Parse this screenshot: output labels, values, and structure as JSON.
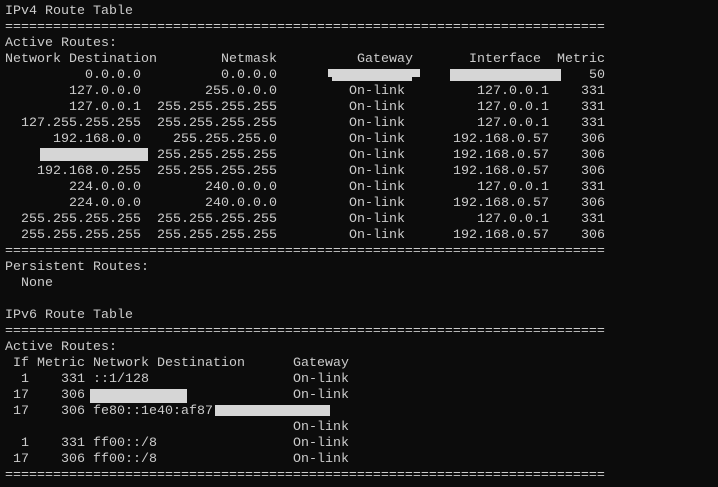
{
  "ipv4": {
    "title": "IPv4 Route Table",
    "separator": "===========================================================================",
    "active_label": "Active Routes:",
    "headers": {
      "destination": "Network Destination",
      "netmask": "Netmask",
      "gateway": "Gateway",
      "interface": "Interface",
      "metric": "Metric"
    },
    "rows": [
      {
        "destination": "0.0.0.0",
        "netmask": "0.0.0.0",
        "gateway": "",
        "interface": "",
        "metric": "50"
      },
      {
        "destination": "127.0.0.0",
        "netmask": "255.0.0.0",
        "gateway": "On-link",
        "interface": "127.0.0.1",
        "metric": "331"
      },
      {
        "destination": "127.0.0.1",
        "netmask": "255.255.255.255",
        "gateway": "On-link",
        "interface": "127.0.0.1",
        "metric": "331"
      },
      {
        "destination": "127.255.255.255",
        "netmask": "255.255.255.255",
        "gateway": "On-link",
        "interface": "127.0.0.1",
        "metric": "331"
      },
      {
        "destination": "192.168.0.0",
        "netmask": "255.255.255.0",
        "gateway": "On-link",
        "interface": "192.168.0.57",
        "metric": "306"
      },
      {
        "destination": "",
        "netmask": "255.255.255.255",
        "gateway": "On-link",
        "interface": "192.168.0.57",
        "metric": "306"
      },
      {
        "destination": "192.168.0.255",
        "netmask": "255.255.255.255",
        "gateway": "On-link",
        "interface": "192.168.0.57",
        "metric": "306"
      },
      {
        "destination": "224.0.0.0",
        "netmask": "240.0.0.0",
        "gateway": "On-link",
        "interface": "127.0.0.1",
        "metric": "331"
      },
      {
        "destination": "224.0.0.0",
        "netmask": "240.0.0.0",
        "gateway": "On-link",
        "interface": "192.168.0.57",
        "metric": "306"
      },
      {
        "destination": "255.255.255.255",
        "netmask": "255.255.255.255",
        "gateway": "On-link",
        "interface": "127.0.0.1",
        "metric": "331"
      },
      {
        "destination": "255.255.255.255",
        "netmask": "255.255.255.255",
        "gateway": "On-link",
        "interface": "192.168.0.57",
        "metric": "306"
      }
    ],
    "persistent_label": "Persistent Routes:",
    "persistent_value": "  None"
  },
  "ipv6": {
    "title": "IPv6 Route Table",
    "active_label": "Active Routes:",
    "headers": {
      "if": "If",
      "metric": "Metric",
      "destination": "Network Destination",
      "gateway": "Gateway"
    },
    "rows": [
      {
        "if": "1",
        "metric": "331",
        "destination": "::1/128",
        "gateway": "On-link"
      },
      {
        "if": "17",
        "metric": "306",
        "destination": "",
        "gateway": "On-link"
      },
      {
        "if": "17",
        "metric": "306",
        "destination": "fe80::1e40:af87",
        "gateway": "",
        "wrapped_gateway": "On-link"
      },
      {
        "if": "1",
        "metric": "331",
        "destination": "ff00::/8",
        "gateway": "On-link"
      },
      {
        "if": "17",
        "metric": "306",
        "destination": "ff00::/8",
        "gateway": "On-link"
      }
    ]
  },
  "colors": {
    "background": "#0c0c0c",
    "text": "#cccccc",
    "redaction": "#d6d6d6"
  }
}
